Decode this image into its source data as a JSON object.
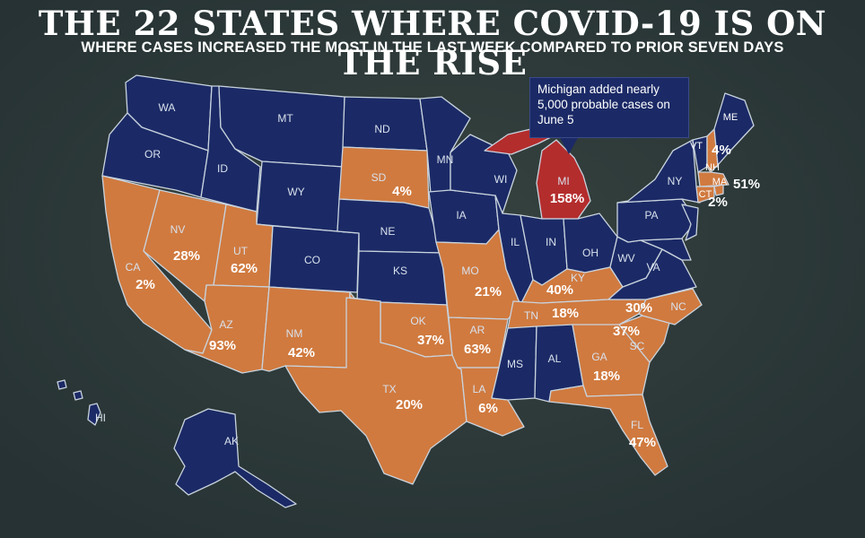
{
  "title": "THE 22 STATES WHERE COVID-19 IS ON THE RISE",
  "subtitle": "WHERE CASES INCREASED THE MOST IN THE LAST WEEK COMPARED TO PRIOR SEVEN DAYS",
  "callout": "Michigan added nearly 5,000 probable cases on June 5",
  "colors": {
    "background": "#2e3a3c",
    "rising": "#d07a3f",
    "not_rising": "#1b2a66",
    "highlight": "#b42d2d",
    "border": "#c9d3de"
  },
  "states": {
    "WA": {
      "abbr": "WA",
      "pct": ""
    },
    "OR": {
      "abbr": "OR",
      "pct": ""
    },
    "CA": {
      "abbr": "CA",
      "pct": "2%"
    },
    "NV": {
      "abbr": "NV",
      "pct": "28%"
    },
    "ID": {
      "abbr": "ID",
      "pct": ""
    },
    "MT": {
      "abbr": "MT",
      "pct": ""
    },
    "WY": {
      "abbr": "WY",
      "pct": ""
    },
    "UT": {
      "abbr": "UT",
      "pct": "62%"
    },
    "AZ": {
      "abbr": "AZ",
      "pct": "93%"
    },
    "CO": {
      "abbr": "CO",
      "pct": ""
    },
    "NM": {
      "abbr": "NM",
      "pct": "42%"
    },
    "ND": {
      "abbr": "ND",
      "pct": ""
    },
    "SD": {
      "abbr": "SD",
      "pct": "4%"
    },
    "NE": {
      "abbr": "NE",
      "pct": ""
    },
    "KS": {
      "abbr": "KS",
      "pct": ""
    },
    "OK": {
      "abbr": "OK",
      "pct": "37%"
    },
    "TX": {
      "abbr": "TX",
      "pct": "20%"
    },
    "MN": {
      "abbr": "MN",
      "pct": ""
    },
    "IA": {
      "abbr": "IA",
      "pct": ""
    },
    "MO": {
      "abbr": "MO",
      "pct": "21%"
    },
    "AR": {
      "abbr": "AR",
      "pct": "63%"
    },
    "LA": {
      "abbr": "LA",
      "pct": "6%"
    },
    "WI": {
      "abbr": "WI",
      "pct": ""
    },
    "IL": {
      "abbr": "IL",
      "pct": ""
    },
    "MI": {
      "abbr": "MI",
      "pct": "158%"
    },
    "IN": {
      "abbr": "IN",
      "pct": ""
    },
    "OH": {
      "abbr": "OH",
      "pct": ""
    },
    "KY": {
      "abbr": "KY",
      "pct": "40%"
    },
    "TN": {
      "abbr": "TN",
      "pct": "18%"
    },
    "MS": {
      "abbr": "MS",
      "pct": ""
    },
    "AL": {
      "abbr": "AL",
      "pct": ""
    },
    "GA": {
      "abbr": "GA",
      "pct": "18%"
    },
    "FL": {
      "abbr": "FL",
      "pct": "47%"
    },
    "SC": {
      "abbr": "SC",
      "pct": "37%"
    },
    "NC": {
      "abbr": "NC",
      "pct": "30%"
    },
    "VA": {
      "abbr": "VA",
      "pct": ""
    },
    "WV": {
      "abbr": "WV",
      "pct": ""
    },
    "PA": {
      "abbr": "PA",
      "pct": ""
    },
    "NY": {
      "abbr": "NY",
      "pct": ""
    },
    "VT": {
      "abbr": "VT",
      "pct": ""
    },
    "NH": {
      "abbr": "NH",
      "pct": ""
    },
    "ME": {
      "abbr": "ME",
      "pct": "4%"
    },
    "MA": {
      "abbr": "MA",
      "pct": "51%"
    },
    "CT": {
      "abbr": "CT",
      "pct": "2%"
    },
    "AK": {
      "abbr": "AK",
      "pct": ""
    },
    "HI": {
      "abbr": "HI",
      "pct": ""
    }
  }
}
